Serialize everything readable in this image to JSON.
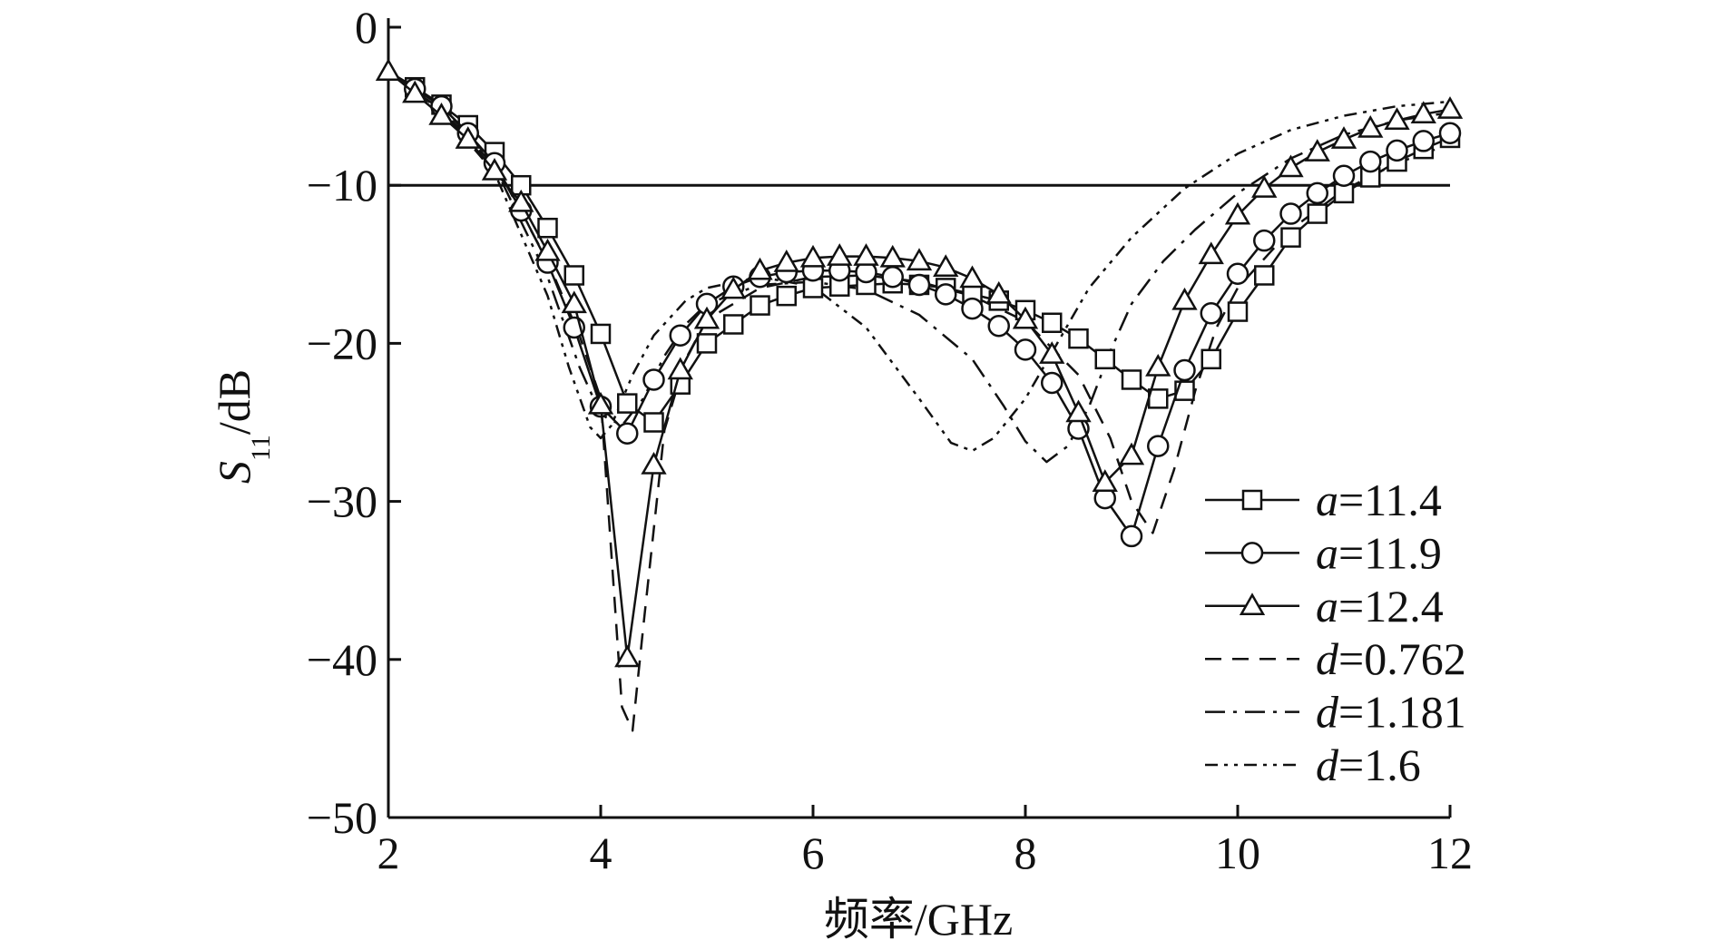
{
  "chart_data": {
    "type": "line",
    "xlabel": "频率/GHz",
    "ylabel_main": "S",
    "ylabel_sub": "11",
    "ylabel_unit": "/dB",
    "xlim": [
      2,
      12
    ],
    "ylim": [
      -50,
      0
    ],
    "xticks": [
      2,
      4,
      6,
      8,
      10,
      12
    ],
    "yticks": [
      0,
      -10,
      -20,
      -30,
      -40,
      -50
    ],
    "xtick_labels": [
      "2",
      "4",
      "6",
      "8",
      "10",
      "12"
    ],
    "ytick_labels": [
      "0",
      "−10",
      "−20",
      "−30",
      "−40",
      "−50"
    ],
    "grid": false,
    "legend_position": "bottom-right",
    "reference_line": {
      "y": -10
    },
    "series": [
      {
        "name": "a=11.4",
        "var": "a",
        "val": "=11.4",
        "marker": "square",
        "dash": "solid",
        "x": [
          2.0,
          2.25,
          2.5,
          2.75,
          3.0,
          3.25,
          3.5,
          3.75,
          4.0,
          4.25,
          4.5,
          4.75,
          5.0,
          5.25,
          5.5,
          5.75,
          6.0,
          6.25,
          6.5,
          6.75,
          7.0,
          7.25,
          7.5,
          7.75,
          8.0,
          8.25,
          8.5,
          8.75,
          9.0,
          9.25,
          9.5,
          9.75,
          10.0,
          10.25,
          10.5,
          10.75,
          11.0,
          11.25,
          11.5,
          11.75,
          12.0
        ],
        "y": [
          -2.8,
          -3.8,
          -4.9,
          -6.2,
          -7.9,
          -10.0,
          -12.7,
          -15.7,
          -19.4,
          -23.8,
          -25.0,
          -22.6,
          -20.0,
          -18.8,
          -17.6,
          -17.0,
          -16.5,
          -16.4,
          -16.3,
          -16.2,
          -16.3,
          -16.5,
          -16.9,
          -17.3,
          -17.9,
          -18.7,
          -19.7,
          -21.0,
          -22.3,
          -23.5,
          -23.0,
          -21.0,
          -18.0,
          -15.7,
          -13.3,
          -11.8,
          -10.5,
          -9.5,
          -8.5,
          -7.7,
          -7.0
        ]
      },
      {
        "name": "a=11.9",
        "var": "a",
        "val": "=11.9",
        "marker": "circle",
        "dash": "solid",
        "x": [
          2.0,
          2.25,
          2.5,
          2.75,
          3.0,
          3.25,
          3.5,
          3.75,
          4.0,
          4.25,
          4.5,
          4.75,
          5.0,
          5.25,
          5.5,
          5.75,
          6.0,
          6.25,
          6.5,
          6.75,
          7.0,
          7.25,
          7.5,
          7.75,
          8.0,
          8.25,
          8.5,
          8.75,
          9.0,
          9.25,
          9.5,
          9.75,
          10.0,
          10.25,
          10.5,
          10.75,
          11.0,
          11.25,
          11.5,
          11.75,
          12.0
        ],
        "y": [
          -2.9,
          -3.9,
          -5.0,
          -6.7,
          -8.6,
          -11.6,
          -14.9,
          -19.0,
          -24.0,
          -25.7,
          -22.3,
          -19.5,
          -17.5,
          -16.4,
          -15.8,
          -15.5,
          -15.4,
          -15.4,
          -15.5,
          -15.8,
          -16.3,
          -16.9,
          -17.8,
          -18.9,
          -20.4,
          -22.5,
          -25.4,
          -29.8,
          -32.2,
          -26.5,
          -21.7,
          -18.1,
          -15.6,
          -13.5,
          -11.8,
          -10.5,
          -9.4,
          -8.5,
          -7.8,
          -7.2,
          -6.7
        ]
      },
      {
        "name": "a=12.4",
        "var": "a",
        "val": "=12.4",
        "marker": "triangle",
        "dash": "solid",
        "x": [
          2.0,
          2.25,
          2.5,
          2.75,
          3.0,
          3.25,
          3.5,
          3.75,
          4.0,
          4.25,
          4.5,
          4.75,
          5.0,
          5.25,
          5.5,
          5.75,
          6.0,
          6.25,
          6.5,
          6.75,
          7.0,
          7.25,
          7.5,
          7.75,
          8.0,
          8.25,
          8.5,
          8.75,
          9.0,
          9.25,
          9.5,
          9.75,
          10.0,
          10.25,
          10.5,
          10.75,
          11.0,
          11.25,
          11.5,
          11.75,
          12.0
        ],
        "y": [
          -2.8,
          -4.2,
          -5.6,
          -7.1,
          -9.1,
          -11.1,
          -14.2,
          -17.5,
          -23.9,
          -39.9,
          -27.7,
          -21.7,
          -18.5,
          -16.6,
          -15.4,
          -14.9,
          -14.6,
          -14.5,
          -14.5,
          -14.6,
          -14.8,
          -15.2,
          -15.9,
          -16.9,
          -18.5,
          -20.7,
          -24.4,
          -28.8,
          -27.1,
          -21.5,
          -17.3,
          -14.4,
          -11.9,
          -10.2,
          -8.9,
          -7.9,
          -7.1,
          -6.4,
          -5.9,
          -5.5,
          -5.2
        ]
      },
      {
        "name": "d=0.762",
        "var": "d",
        "val": "=0.762",
        "marker": "none",
        "dash": "dash",
        "x": [
          2.0,
          2.5,
          3.0,
          3.5,
          3.8,
          4.0,
          4.2,
          4.3,
          4.4,
          4.6,
          4.8,
          5.0,
          5.5,
          6.0,
          6.5,
          7.0,
          7.5,
          8.0,
          8.5,
          8.8,
          9.0,
          9.2,
          9.4,
          9.6,
          9.8,
          10.0,
          10.5,
          11.0,
          11.5,
          12.0
        ],
        "y": [
          -2.8,
          -5.0,
          -8.6,
          -14.8,
          -19.5,
          -23.5,
          -43.0,
          -44.5,
          -38.0,
          -25.5,
          -21.0,
          -18.5,
          -16.5,
          -15.8,
          -15.7,
          -16.1,
          -17.0,
          -18.6,
          -22.0,
          -26.0,
          -30.0,
          -32.0,
          -28.0,
          -23.0,
          -19.0,
          -16.5,
          -12.8,
          -10.3,
          -8.6,
          -7.4
        ]
      },
      {
        "name": "d=1.181",
        "var": "d",
        "val": "=1.181",
        "marker": "none",
        "dash": "dashdot",
        "x": [
          2.0,
          2.5,
          3.0,
          3.5,
          3.8,
          4.0,
          4.2,
          4.4,
          4.6,
          4.8,
          5.0,
          5.5,
          6.0,
          6.5,
          7.0,
          7.5,
          7.8,
          8.0,
          8.2,
          8.4,
          8.6,
          8.8,
          9.0,
          9.3,
          9.6,
          10.0,
          10.5,
          11.0,
          11.5,
          12.0
        ],
        "y": [
          -2.9,
          -5.2,
          -8.8,
          -15.8,
          -21.5,
          -24.5,
          -25.2,
          -23.5,
          -20.8,
          -18.8,
          -17.5,
          -16.3,
          -16.1,
          -16.6,
          -18.2,
          -21.0,
          -24.0,
          -26.2,
          -27.5,
          -26.5,
          -24.0,
          -20.5,
          -17.5,
          -14.8,
          -12.8,
          -10.5,
          -8.3,
          -6.8,
          -5.9,
          -5.4
        ]
      },
      {
        "name": "d=1.6",
        "var": "d",
        "val": "=1.6",
        "marker": "none",
        "dash": "dashdotdot",
        "x": [
          2.0,
          2.5,
          3.0,
          3.5,
          3.7,
          3.9,
          4.0,
          4.1,
          4.3,
          4.5,
          4.8,
          5.0,
          5.5,
          6.0,
          6.5,
          7.0,
          7.3,
          7.5,
          7.7,
          8.0,
          8.3,
          8.6,
          9.0,
          9.5,
          10.0,
          10.5,
          11.0,
          11.5,
          12.0
        ],
        "y": [
          -2.8,
          -5.3,
          -9.2,
          -17.0,
          -21.5,
          -25.3,
          -26.0,
          -25.2,
          -22.0,
          -19.5,
          -17.3,
          -16.5,
          -15.8,
          -16.4,
          -19.0,
          -23.5,
          -26.3,
          -26.8,
          -26.0,
          -23.5,
          -20.0,
          -16.5,
          -13.3,
          -10.2,
          -8.0,
          -6.5,
          -5.6,
          -5.0,
          -4.7
        ]
      }
    ]
  }
}
